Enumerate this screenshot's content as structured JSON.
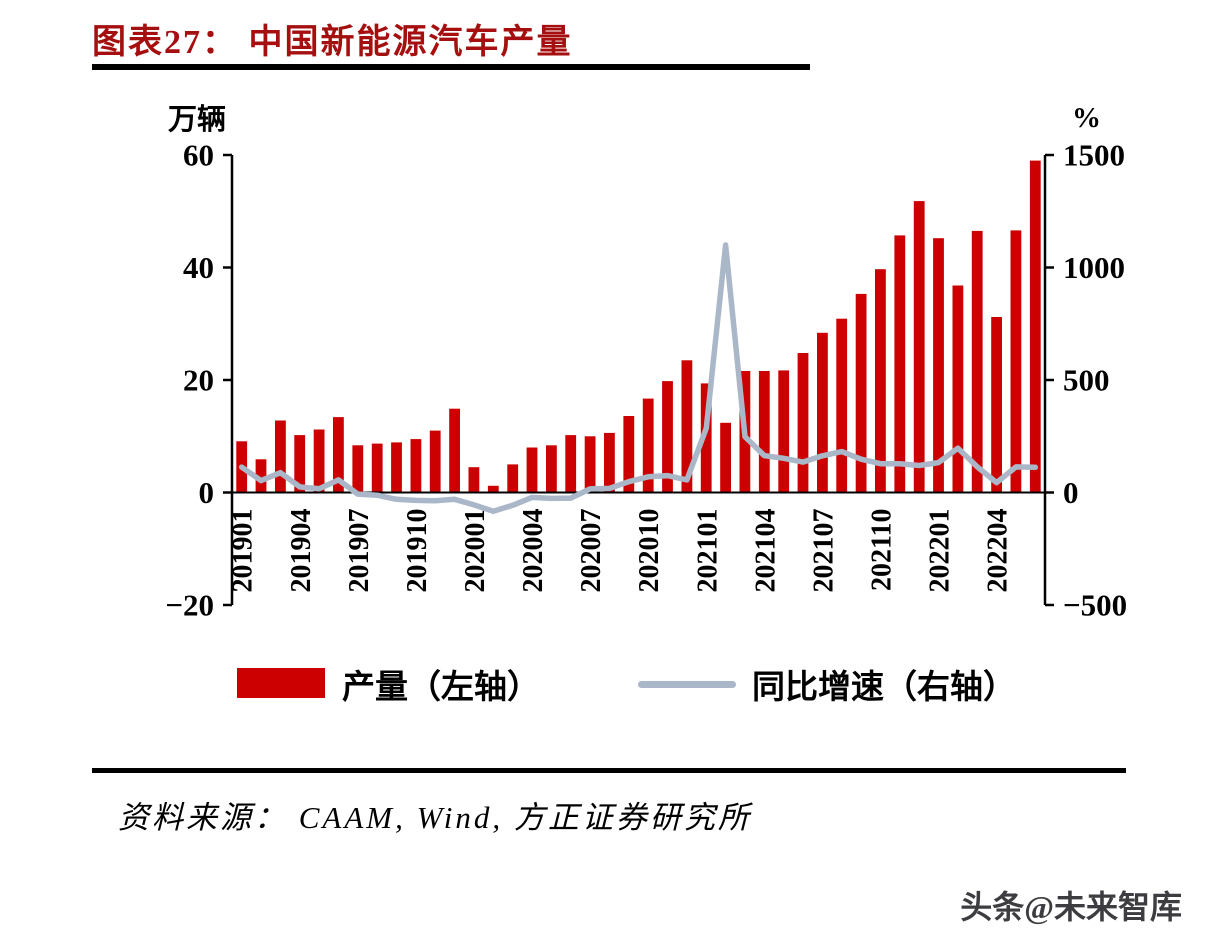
{
  "header": {
    "title": "图表27：  中国新能源汽车产量"
  },
  "chart_data": {
    "type": "bar",
    "title": "中国新能源汽车产量",
    "left_axis": {
      "unit": "万辆",
      "min": -20,
      "max": 60,
      "ticks": [
        60,
        40,
        20,
        0,
        -20
      ]
    },
    "right_axis": {
      "unit": "%",
      "min": -500,
      "max": 1500,
      "ticks": [
        1500,
        1000,
        500,
        0,
        -500
      ]
    },
    "x_tick_labels": [
      "201901",
      "201904",
      "201907",
      "201910",
      "202001",
      "202004",
      "202007",
      "202010",
      "202101",
      "202104",
      "202107",
      "202110",
      "202201",
      "202204"
    ],
    "categories": [
      "201901",
      "201902",
      "201903",
      "201904",
      "201905",
      "201906",
      "201907",
      "201908",
      "201909",
      "201910",
      "201911",
      "201912",
      "202001",
      "202002",
      "202003",
      "202004",
      "202005",
      "202006",
      "202007",
      "202008",
      "202009",
      "202010",
      "202011",
      "202012",
      "202101",
      "202102",
      "202103",
      "202104",
      "202105",
      "202106",
      "202107",
      "202108",
      "202109",
      "202110",
      "202111",
      "202112",
      "202201",
      "202202",
      "202203",
      "202204",
      "202205",
      "202206"
    ],
    "series": [
      {
        "name": "产量（左轴）",
        "type": "bar",
        "axis": "left",
        "color": "#cc0000",
        "values": [
          9.1,
          5.9,
          12.8,
          10.2,
          11.2,
          13.4,
          8.4,
          8.7,
          8.9,
          9.5,
          11.0,
          14.9,
          4.5,
          1.2,
          5.0,
          8.0,
          8.4,
          10.2,
          10.0,
          10.6,
          13.6,
          16.7,
          19.8,
          23.5,
          19.4,
          12.4,
          21.6,
          21.6,
          21.7,
          24.8,
          28.4,
          30.9,
          35.3,
          39.7,
          45.7,
          51.8,
          45.2,
          36.8,
          46.5,
          31.2,
          46.6,
          59.0
        ]
      },
      {
        "name": "同比增速（右轴）",
        "type": "line",
        "axis": "right",
        "color": "#aab7c8",
        "values": [
          113,
          53,
          88,
          25,
          17,
          56,
          -7,
          -12,
          -30,
          -35,
          -37,
          -30,
          -55,
          -83,
          -57,
          -22,
          -26,
          -25,
          16,
          18,
          48,
          70,
          75,
          56,
          286,
          1100,
          248,
          164,
          152,
          135,
          163,
          182,
          148,
          128,
          128,
          120,
          133,
          197,
          114,
          44,
          114,
          112
        ]
      }
    ],
    "legend_position": "bottom",
    "grid": false
  },
  "footer": {
    "source": "资料来源： CAAM, Wind, 方正证券研究所",
    "watermark": "头条@未来智库"
  }
}
